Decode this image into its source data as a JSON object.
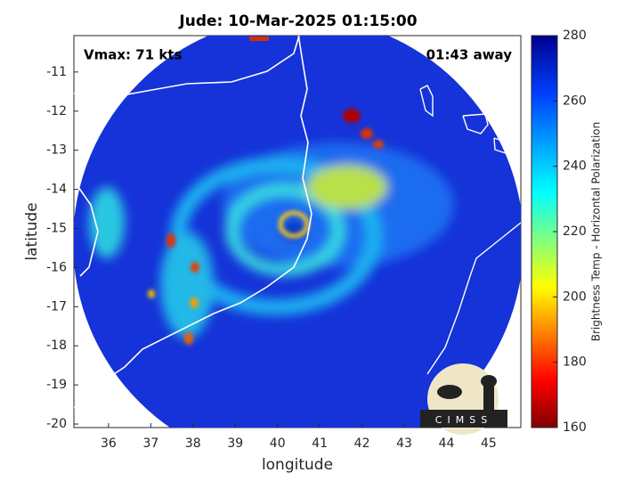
{
  "chart_data": {
    "type": "map",
    "title": "Jude: 10-Mar-2025 01:15:00",
    "annotations": [
      "Vmax: 71 kts",
      "01:43 away"
    ],
    "x_label": "longitude",
    "y_label": "latitude",
    "xlim": [
      35.18,
      45.76
    ],
    "ylim": [
      -20.09,
      -10.07
    ],
    "xticks": [
      36,
      37,
      38,
      39,
      40,
      41,
      42,
      43,
      44,
      45
    ],
    "yticks": [
      -11,
      -12,
      -13,
      -14,
      -15,
      -16,
      -17,
      -18,
      -19,
      -20
    ],
    "colorbar": {
      "label": "Brightness Temp - Horizontal Polarization",
      "lim": [
        160,
        280
      ],
      "ticks": [
        160,
        180,
        200,
        220,
        240,
        260,
        280
      ]
    },
    "logo": "CIMSS"
  }
}
